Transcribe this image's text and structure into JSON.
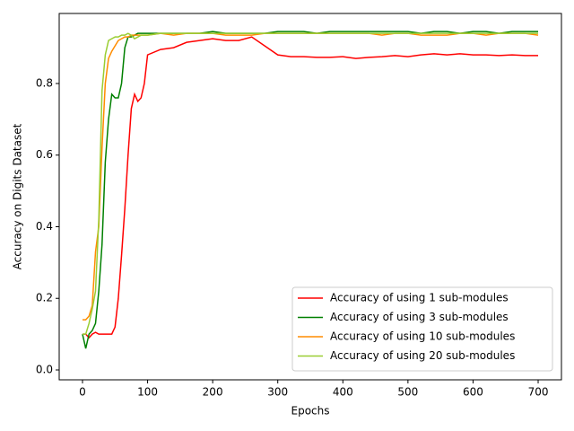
{
  "chart_data": {
    "type": "line",
    "xlabel": "Epochs",
    "ylabel": "Accuracy on Digits Dataset",
    "x": [
      0,
      5,
      10,
      15,
      20,
      25,
      30,
      35,
      40,
      45,
      50,
      55,
      60,
      65,
      70,
      75,
      80,
      85,
      90,
      95,
      100,
      120,
      140,
      160,
      180,
      200,
      220,
      240,
      260,
      280,
      300,
      320,
      340,
      360,
      380,
      400,
      420,
      440,
      460,
      480,
      500,
      520,
      540,
      560,
      580,
      600,
      620,
      640,
      660,
      680,
      700
    ],
    "series": [
      {
        "name": "Accuracy of using 1 sub-modules",
        "color": "#ff0000",
        "values": [
          0.1,
          0.1,
          0.09,
          0.1,
          0.105,
          0.1,
          0.1,
          0.1,
          0.1,
          0.1,
          0.12,
          0.2,
          0.32,
          0.45,
          0.6,
          0.73,
          0.77,
          0.75,
          0.76,
          0.8,
          0.88,
          0.895,
          0.9,
          0.915,
          0.92,
          0.925,
          0.92,
          0.92,
          0.93,
          0.905,
          0.88,
          0.875,
          0.875,
          0.873,
          0.873,
          0.875,
          0.87,
          0.873,
          0.875,
          0.878,
          0.875,
          0.88,
          0.883,
          0.88,
          0.883,
          0.88,
          0.88,
          0.878,
          0.88,
          0.878,
          0.878
        ]
      },
      {
        "name": "Accuracy of using 3 sub-modules",
        "color": "#008000",
        "values": [
          0.1,
          0.06,
          0.1,
          0.11,
          0.13,
          0.22,
          0.35,
          0.58,
          0.7,
          0.77,
          0.76,
          0.76,
          0.8,
          0.9,
          0.93,
          0.93,
          0.935,
          0.94,
          0.94,
          0.94,
          0.94,
          0.94,
          0.94,
          0.94,
          0.94,
          0.945,
          0.94,
          0.94,
          0.94,
          0.94,
          0.945,
          0.945,
          0.945,
          0.94,
          0.945,
          0.945,
          0.945,
          0.945,
          0.945,
          0.945,
          0.945,
          0.94,
          0.945,
          0.945,
          0.94,
          0.945,
          0.945,
          0.94,
          0.945,
          0.945,
          0.945
        ]
      },
      {
        "name": "Accuracy of using 10 sub-modules",
        "color": "#ff8c00",
        "values": [
          0.14,
          0.14,
          0.15,
          0.18,
          0.33,
          0.4,
          0.62,
          0.8,
          0.87,
          0.89,
          0.905,
          0.92,
          0.925,
          0.93,
          0.93,
          0.935,
          0.935,
          0.935,
          0.935,
          0.935,
          0.935,
          0.94,
          0.935,
          0.94,
          0.94,
          0.94,
          0.935,
          0.935,
          0.935,
          0.94,
          0.94,
          0.94,
          0.94,
          0.94,
          0.94,
          0.94,
          0.94,
          0.94,
          0.935,
          0.94,
          0.94,
          0.935,
          0.935,
          0.935,
          0.94,
          0.94,
          0.935,
          0.94,
          0.94,
          0.94,
          0.935
        ]
      },
      {
        "name": "Accuracy of using 20 sub-modules",
        "color": "#9acd32",
        "values": [
          0.1,
          0.1,
          0.13,
          0.17,
          0.22,
          0.42,
          0.78,
          0.88,
          0.92,
          0.925,
          0.93,
          0.93,
          0.935,
          0.935,
          0.94,
          0.935,
          0.925,
          0.93,
          0.935,
          0.935,
          0.935,
          0.94,
          0.94,
          0.94,
          0.94,
          0.94,
          0.94,
          0.94,
          0.94,
          0.94,
          0.94,
          0.94,
          0.94,
          0.94,
          0.94,
          0.94,
          0.94,
          0.94,
          0.94,
          0.94,
          0.94,
          0.94,
          0.94,
          0.94,
          0.94,
          0.94,
          0.94,
          0.94,
          0.94,
          0.94,
          0.94
        ]
      }
    ],
    "xlim": [
      -35.8,
      735.8
    ],
    "ylim": [
      -0.0276,
      0.9956
    ],
    "xticks": [
      0,
      100,
      200,
      300,
      400,
      500,
      600,
      700
    ],
    "yticks": [
      {
        "value": 0,
        "label": "0.0"
      },
      0.2,
      0.4,
      0.6,
      0.8
    ],
    "legend": "lower right"
  }
}
